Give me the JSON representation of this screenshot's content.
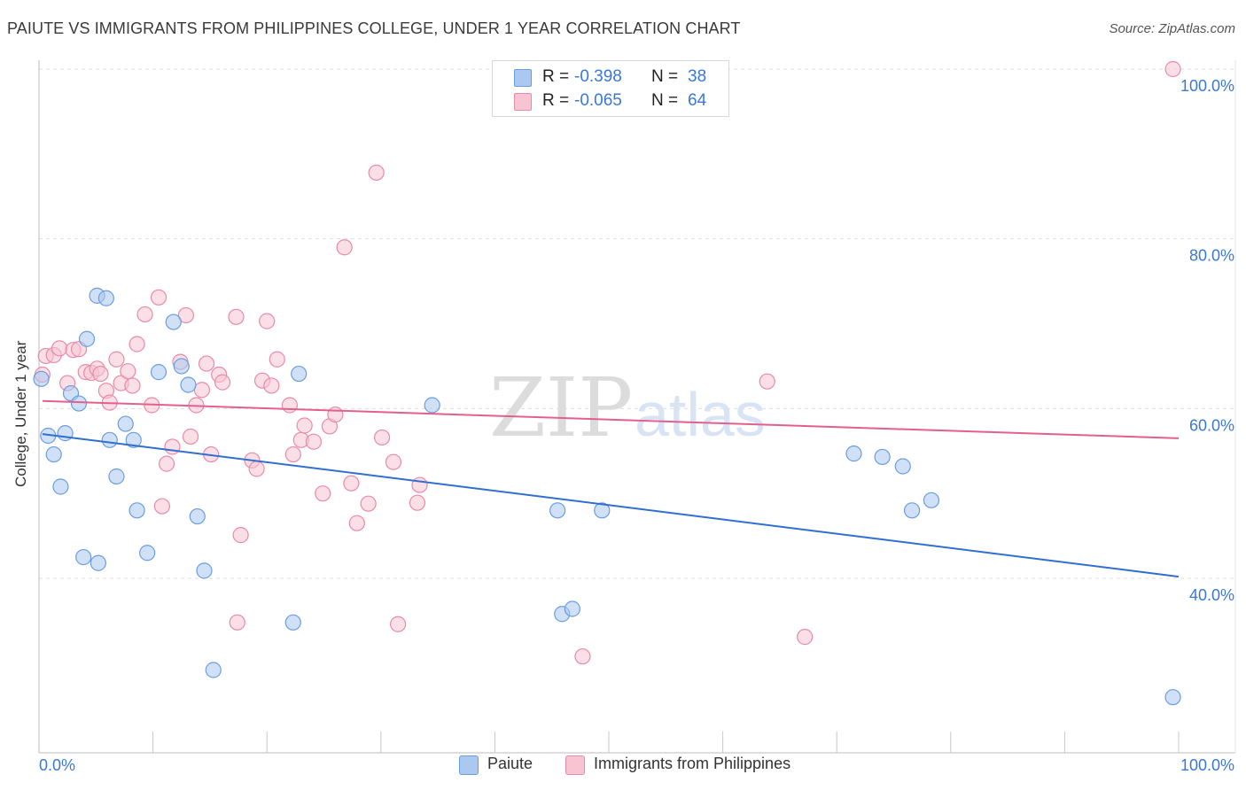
{
  "title": "PAIUTE VS IMMIGRANTS FROM PHILIPPINES COLLEGE, UNDER 1 YEAR CORRELATION CHART",
  "source": "Source: ZipAtlas.com",
  "watermark": {
    "zip": "ZIP",
    "atlas": "atlas"
  },
  "legend_top": [
    {
      "r_label": "R =",
      "r_value": "-0.398",
      "n_label": "N =",
      "n_value": "38",
      "color": "#aac8f0",
      "border": "#6a9de0"
    },
    {
      "r_label": "R =",
      "r_value": "-0.065",
      "n_label": "N =",
      "n_value": "64",
      "color": "#f8c4d4",
      "border": "#e88aa8"
    }
  ],
  "chart_data": {
    "type": "scatter",
    "title": "PAIUTE VS IMMIGRANTS FROM PHILIPPINES COLLEGE, UNDER 1 YEAR CORRELATION CHART",
    "xlabel": "",
    "ylabel": "College, Under 1 year",
    "xlim": [
      0,
      100
    ],
    "ylim": [
      20,
      102
    ],
    "x_tick_labels": [
      "0.0%",
      "100.0%"
    ],
    "y_ticks": [
      40,
      60,
      80,
      100
    ],
    "y_tick_labels": [
      "40.0%",
      "60.0%",
      "80.0%",
      "100.0%"
    ],
    "series": [
      {
        "name": "Paiute",
        "color": "#6a9de0",
        "fill": "#aac8f0",
        "line_color": "#2f6fd0",
        "trend": {
          "x": [
            0,
            100
          ],
          "y": [
            57.0,
            40.2
          ]
        },
        "points": [
          [
            0.2,
            63.5
          ],
          [
            0.8,
            56.8
          ],
          [
            1.3,
            54.6
          ],
          [
            1.9,
            50.8
          ],
          [
            2.3,
            57.1
          ],
          [
            2.8,
            61.8
          ],
          [
            3.5,
            60.6
          ],
          [
            3.9,
            42.5
          ],
          [
            4.2,
            68.2
          ],
          [
            5.2,
            41.8
          ],
          [
            5.1,
            73.3
          ],
          [
            5.9,
            73.0
          ],
          [
            6.2,
            56.3
          ],
          [
            6.8,
            52.0
          ],
          [
            7.6,
            58.2
          ],
          [
            8.3,
            56.3
          ],
          [
            8.6,
            48.0
          ],
          [
            9.5,
            43.0
          ],
          [
            10.5,
            64.3
          ],
          [
            11.8,
            70.2
          ],
          [
            12.5,
            65.0
          ],
          [
            13.1,
            62.8
          ],
          [
            13.9,
            47.3
          ],
          [
            14.5,
            40.9
          ],
          [
            15.3,
            29.2
          ],
          [
            22.3,
            34.8
          ],
          [
            22.8,
            64.1
          ],
          [
            34.5,
            60.4
          ],
          [
            45.5,
            48.0
          ],
          [
            45.9,
            35.8
          ],
          [
            46.8,
            36.4
          ],
          [
            49.4,
            48.0
          ],
          [
            71.5,
            54.7
          ],
          [
            74.0,
            54.3
          ],
          [
            75.8,
            53.2
          ],
          [
            76.6,
            48.0
          ],
          [
            78.3,
            49.2
          ],
          [
            99.5,
            26.0
          ]
        ]
      },
      {
        "name": "Immigrants from Philippines",
        "color": "#e88aa8",
        "fill": "#f8c4d4",
        "line_color": "#e3608e",
        "trend": {
          "x": [
            0,
            100
          ],
          "y": [
            60.9,
            56.5
          ]
        },
        "points": [
          [
            0.3,
            64.0
          ],
          [
            0.6,
            66.2
          ],
          [
            1.3,
            66.3
          ],
          [
            1.8,
            67.1
          ],
          [
            2.5,
            63.0
          ],
          [
            3.0,
            66.9
          ],
          [
            3.5,
            67.0
          ],
          [
            4.1,
            64.3
          ],
          [
            4.6,
            64.2
          ],
          [
            5.1,
            64.7
          ],
          [
            5.4,
            64.1
          ],
          [
            5.9,
            62.1
          ],
          [
            6.2,
            60.7
          ],
          [
            6.8,
            65.8
          ],
          [
            7.2,
            63.0
          ],
          [
            7.8,
            64.4
          ],
          [
            8.2,
            62.7
          ],
          [
            8.6,
            67.6
          ],
          [
            9.3,
            71.1
          ],
          [
            9.9,
            60.4
          ],
          [
            10.5,
            73.1
          ],
          [
            10.8,
            48.5
          ],
          [
            11.2,
            53.5
          ],
          [
            11.7,
            55.5
          ],
          [
            12.4,
            65.5
          ],
          [
            12.9,
            71.0
          ],
          [
            13.3,
            56.7
          ],
          [
            13.8,
            60.4
          ],
          [
            14.3,
            62.2
          ],
          [
            14.7,
            65.3
          ],
          [
            15.1,
            54.6
          ],
          [
            15.8,
            64.0
          ],
          [
            16.1,
            63.1
          ],
          [
            17.4,
            34.8
          ],
          [
            17.7,
            45.1
          ],
          [
            17.3,
            70.8
          ],
          [
            18.7,
            53.9
          ],
          [
            19.1,
            52.9
          ],
          [
            19.6,
            63.3
          ],
          [
            20.0,
            70.3
          ],
          [
            20.4,
            62.7
          ],
          [
            20.9,
            65.8
          ],
          [
            22.0,
            60.4
          ],
          [
            22.3,
            54.6
          ],
          [
            23.0,
            56.3
          ],
          [
            23.3,
            58.0
          ],
          [
            24.1,
            56.1
          ],
          [
            24.9,
            50.0
          ],
          [
            25.5,
            57.9
          ],
          [
            26.0,
            59.3
          ],
          [
            26.8,
            79.0
          ],
          [
            27.4,
            51.2
          ],
          [
            27.9,
            46.5
          ],
          [
            28.9,
            48.8
          ],
          [
            29.6,
            87.8
          ],
          [
            30.1,
            56.6
          ],
          [
            31.1,
            53.7
          ],
          [
            31.5,
            34.6
          ],
          [
            33.2,
            48.9
          ],
          [
            33.4,
            51.0
          ],
          [
            47.7,
            30.8
          ],
          [
            63.9,
            63.2
          ],
          [
            67.2,
            33.1
          ],
          [
            99.5,
            100.0
          ]
        ]
      }
    ]
  },
  "bottom_legend": [
    {
      "label": "Paiute",
      "color": "#aac8f0",
      "border": "#6a9de0"
    },
    {
      "label": "Immigrants from Philippines",
      "color": "#f8c4d4",
      "border": "#e88aa8"
    }
  ]
}
